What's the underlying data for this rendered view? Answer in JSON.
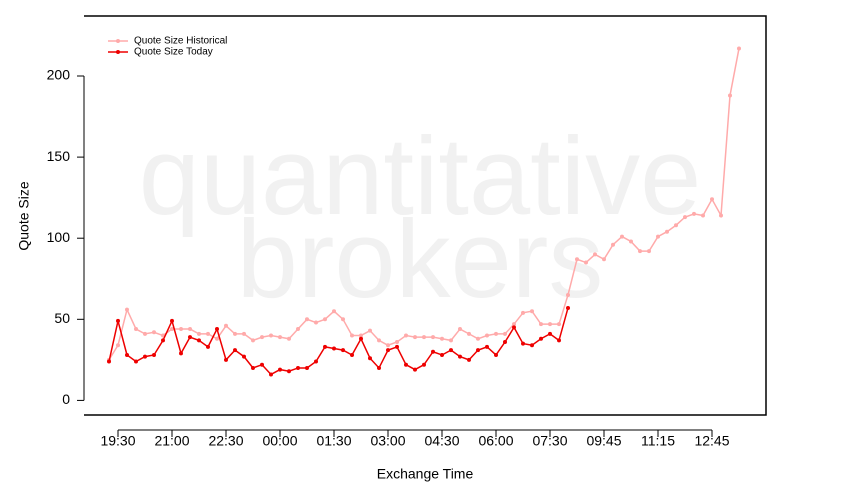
{
  "chart_data": {
    "type": "line",
    "watermark": [
      "quantitative",
      "brokers"
    ],
    "x_label": "Exchange Time",
    "y_label": "Quote Size",
    "categories": [
      null,
      "19:30",
      null,
      null,
      null,
      null,
      null,
      "21:00",
      null,
      null,
      null,
      null,
      null,
      "22:30",
      null,
      null,
      null,
      null,
      null,
      "00:00",
      null,
      null,
      null,
      null,
      null,
      "01:30",
      null,
      null,
      null,
      null,
      null,
      "03:00",
      null,
      null,
      null,
      null,
      null,
      "04:30",
      null,
      null,
      null,
      null,
      null,
      "06:00",
      null,
      null,
      null,
      null,
      null,
      "07:30",
      null,
      null,
      null,
      null,
      null,
      "09:45",
      null,
      null,
      null,
      null,
      null,
      "11:15",
      null,
      null,
      null,
      null,
      null,
      "12:45",
      null,
      null,
      null
    ],
    "series": [
      {
        "name": "Quote Size Historical",
        "color": "#ffaaaa",
        "values": [
          25,
          34,
          56,
          44,
          41,
          42,
          40,
          44,
          44,
          44,
          41,
          41,
          38,
          46,
          41,
          41,
          37,
          39,
          40,
          39,
          38,
          44,
          50,
          48,
          50,
          55,
          50,
          40,
          40,
          43,
          37,
          34,
          36,
          40,
          39,
          39,
          39,
          38,
          37,
          44,
          41,
          38,
          40,
          41,
          41,
          47,
          54,
          55,
          47,
          47,
          47,
          65,
          87,
          85,
          90,
          87,
          96,
          101,
          98,
          92,
          92,
          101,
          104,
          108,
          113,
          115,
          114,
          124,
          114,
          188,
          217
        ]
      },
      {
        "name": "Quote Size Today",
        "color": "#ee0000",
        "values": [
          24,
          49,
          28,
          24,
          27,
          28,
          37,
          49,
          29,
          39,
          37,
          33,
          44,
          25,
          31,
          27,
          20,
          22,
          16,
          19,
          18,
          20,
          20,
          24,
          33,
          32,
          31,
          28,
          38,
          26,
          20,
          31,
          33,
          22,
          19,
          22,
          30,
          28,
          31,
          27,
          25,
          31,
          33,
          28,
          36,
          45,
          35,
          34,
          38,
          41,
          37,
          57,
          null,
          null,
          null,
          null,
          null,
          null,
          null,
          null,
          null,
          null,
          null,
          null,
          null,
          null,
          null,
          null,
          null,
          null,
          null
        ]
      }
    ],
    "ylim": [
      -9,
      237
    ],
    "yticks": [
      0,
      50,
      100,
      150,
      200
    ],
    "legend": "top-left"
  }
}
